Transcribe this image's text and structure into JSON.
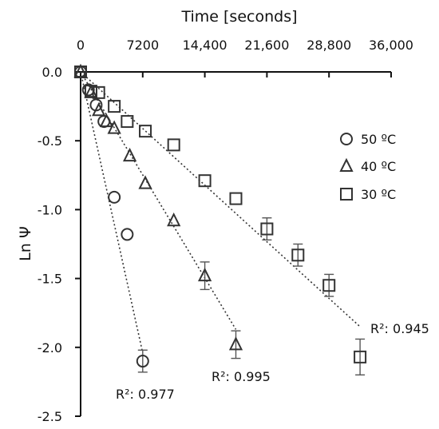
{
  "chart_data": {
    "type": "scatter",
    "xlabel": "Time [seconds]",
    "ylabel": "Ln Ψ",
    "xlim": [
      0,
      36000
    ],
    "ylim": [
      -2.5,
      0.0
    ],
    "x_ticks": [
      0,
      7200,
      14400,
      21600,
      28800,
      36000
    ],
    "x_tick_labels": [
      "0",
      "7200",
      "14,400",
      "21,600",
      "28,800",
      "36,000"
    ],
    "y_ticks": [
      0.0,
      -0.5,
      -1.0,
      -1.5,
      -2.0,
      -2.5
    ],
    "y_tick_labels": [
      "0.0",
      "-0.5",
      "-1.0",
      "-1.5",
      "-2.0",
      "-2.5"
    ],
    "x_axis_position": "top",
    "grid": false,
    "legend_position": "right",
    "series": [
      {
        "name": "50 ºC",
        "marker": "circle",
        "points": [
          {
            "x": 0,
            "y": 0.0
          },
          {
            "x": 900,
            "y": -0.13
          },
          {
            "x": 1800,
            "y": -0.24
          },
          {
            "x": 2700,
            "y": -0.36
          },
          {
            "x": 3900,
            "y": -0.91
          },
          {
            "x": 5400,
            "y": -1.18
          },
          {
            "x": 7200,
            "y": -2.1,
            "err": 0.08
          }
        ],
        "trend": {
          "x": [
            0,
            7200
          ],
          "y": [
            0.0,
            -2.04
          ]
        },
        "r2_label": "R²: 0.977"
      },
      {
        "name": "40 ºC",
        "marker": "triangle",
        "points": [
          {
            "x": 0,
            "y": 0.0
          },
          {
            "x": 1200,
            "y": -0.15
          },
          {
            "x": 2100,
            "y": -0.28
          },
          {
            "x": 3000,
            "y": -0.36
          },
          {
            "x": 3900,
            "y": -0.41
          },
          {
            "x": 5700,
            "y": -0.61
          },
          {
            "x": 7500,
            "y": -0.81
          },
          {
            "x": 10800,
            "y": -1.08
          },
          {
            "x": 14400,
            "y": -1.48,
            "err": 0.1
          },
          {
            "x": 18000,
            "y": -1.98,
            "err": 0.1
          }
        ],
        "trend": {
          "x": [
            0,
            18000
          ],
          "y": [
            0.0,
            -1.87
          ]
        },
        "r2_label": "R²: 0.995"
      },
      {
        "name": "30 ºC",
        "marker": "square",
        "points": [
          {
            "x": 0,
            "y": 0.0
          },
          {
            "x": 1200,
            "y": -0.14
          },
          {
            "x": 2100,
            "y": -0.15
          },
          {
            "x": 3900,
            "y": -0.25
          },
          {
            "x": 5400,
            "y": -0.36
          },
          {
            "x": 7500,
            "y": -0.43
          },
          {
            "x": 10800,
            "y": -0.53
          },
          {
            "x": 14400,
            "y": -0.79
          },
          {
            "x": 18000,
            "y": -0.92
          },
          {
            "x": 21600,
            "y": -1.14,
            "err": 0.08
          },
          {
            "x": 25200,
            "y": -1.33,
            "err": 0.08
          },
          {
            "x": 28800,
            "y": -1.55,
            "err": 0.08
          },
          {
            "x": 32400,
            "y": -2.07,
            "err": 0.13
          }
        ],
        "trend": {
          "x": [
            0,
            32400
          ],
          "y": [
            0.0,
            -1.85
          ]
        },
        "r2_label": "R²: 0.945"
      }
    ]
  }
}
